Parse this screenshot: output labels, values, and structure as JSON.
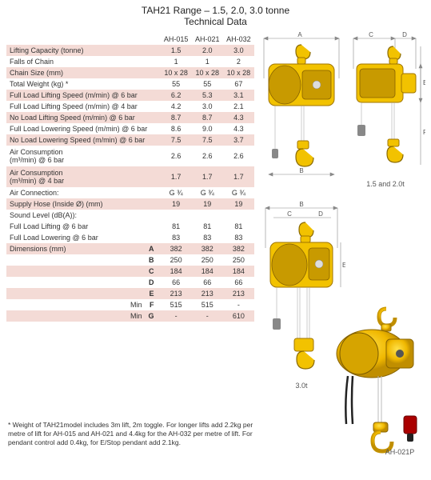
{
  "title_line1": "TAH21 Range – 1.5, 2.0, 3.0 tonne",
  "title_line2": "Technical Data",
  "columns": {
    "c1": "AH-015",
    "c2": "AH-021",
    "c3": "AH-032"
  },
  "rows": [
    {
      "label": "Lifting Capacity (tonne)",
      "v": [
        "1.5",
        "2.0",
        "3.0"
      ],
      "stripe": true
    },
    {
      "label": "Falls of Chain",
      "v": [
        "1",
        "1",
        "2"
      ],
      "stripe": false
    },
    {
      "label": "Chain Size (mm)",
      "v": [
        "10 x 28",
        "10 x 28",
        "10 x 28"
      ],
      "stripe": true
    },
    {
      "label": "Total Weight (kg) *",
      "v": [
        "55",
        "55",
        "67"
      ],
      "stripe": false
    },
    {
      "label": "Full Load Lifting Speed (m/min) @ 6 bar",
      "v": [
        "6.2",
        "5.3",
        "3.1"
      ],
      "stripe": true
    },
    {
      "label": "Full Load Lifting Speed (m/min) @ 4 bar",
      "v": [
        "4.2",
        "3.0",
        "2.1"
      ],
      "stripe": false
    },
    {
      "label": "No Load Lifting Speed (m/min) @ 6 bar",
      "v": [
        "8.7",
        "8.7",
        "4.3"
      ],
      "stripe": true
    },
    {
      "label": "Full Load Lowering Speed (m/min) @ 6 bar",
      "v": [
        "8.6",
        "9.0",
        "4.3"
      ],
      "stripe": false
    },
    {
      "label": "No Load Lowering Speed (m/min) @ 6 bar",
      "v": [
        "7.5",
        "7.5",
        "3.7"
      ],
      "stripe": true
    },
    {
      "label": "Air Consumption\n(m³/min) @ 6 bar",
      "v": [
        "2.6",
        "2.6",
        "2.6"
      ],
      "stripe": false,
      "tall": true
    },
    {
      "label": "Air Consumption\n(m³/min) @ 4 bar",
      "v": [
        "1.7",
        "1.7",
        "1.7"
      ],
      "stripe": true,
      "tall": true
    },
    {
      "label": "Air Connection:",
      "v": [
        "G ¾",
        "G ¾",
        "G ¾"
      ],
      "stripe": false
    },
    {
      "label": "Supply Hose (Inside Ø) (mm)",
      "v": [
        "19",
        "19",
        "19"
      ],
      "stripe": true
    },
    {
      "label": "Sound Level (dB(A)):",
      "v": [
        "",
        "",
        ""
      ],
      "stripe": false,
      "noval": true
    }
  ],
  "sound_rows": [
    {
      "label": "Full Load Lifting @ 6 bar",
      "v": [
        "81",
        "81",
        "81"
      ]
    },
    {
      "label": "Full Load Lowering @ 6 bar",
      "v": [
        "83",
        "83",
        "83"
      ]
    }
  ],
  "dim_label": "Dimensions (mm)",
  "dims": [
    {
      "s": "A",
      "v": [
        "382",
        "382",
        "382"
      ],
      "stripe": true
    },
    {
      "s": "B",
      "v": [
        "250",
        "250",
        "250"
      ],
      "stripe": false
    },
    {
      "s": "C",
      "v": [
        "184",
        "184",
        "184"
      ],
      "stripe": true
    },
    {
      "s": "D",
      "v": [
        "66",
        "66",
        "66"
      ],
      "stripe": false
    },
    {
      "s": "E",
      "v": [
        "213",
        "213",
        "213"
      ],
      "stripe": true
    },
    {
      "s": "F",
      "v": [
        "515",
        "515",
        "-"
      ],
      "stripe": false,
      "pre": "Min"
    },
    {
      "s": "G",
      "v": [
        "-",
        "-",
        "610"
      ],
      "stripe": true,
      "pre": "Min"
    }
  ],
  "footnote": "* Weight of TAH21model includes 3m lift, 2m toggle. For longer lifts add 2.2kg per metre of lift for AH-015 and AH-021 and 4.4kg for the AH-032 per metre of lift. For pendant control add 0.4kg, for E/Stop pendant add 2.1kg.",
  "captions": {
    "top_right": "1.5 and 2.0t",
    "bottom_left": "3.0t",
    "photo": "AH-021P"
  },
  "dim_letters": {
    "A": "A",
    "B": "B",
    "C": "C",
    "D": "D",
    "E": "E",
    "F": "F"
  },
  "colors": {
    "stripe": "#f4dbd6",
    "hoist_yellow": "#f2c200",
    "hoist_stroke": "#a07500",
    "dim_stroke": "#888888"
  }
}
